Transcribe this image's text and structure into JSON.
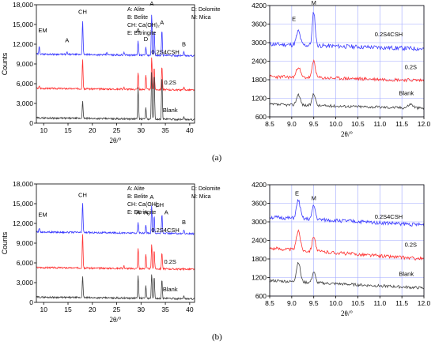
{
  "chart_data": [
    {
      "id": "a_left",
      "type": "line",
      "ylabel": "Counts",
      "xlabel": "2θ/°",
      "xlim": [
        8.5,
        41
      ],
      "ylim": [
        0,
        18000
      ],
      "yticks": [
        "0",
        "3,000",
        "6,000",
        "9,000",
        "12,000",
        "15,000",
        "18,000"
      ],
      "xticks": [
        "10",
        "15",
        "20",
        "25",
        "30",
        "35",
        "40"
      ],
      "grid": false,
      "legend_text": {
        "col1": [
          "A: Alite",
          "B: Belite",
          "CH: Ca(OH)₂",
          "E: Ettringite"
        ],
        "col2": [
          "D: Dolomite",
          "M: Mica"
        ]
      },
      "series": [
        {
          "name": "0.2S4CSH",
          "color": "#3a3aff",
          "base": 10500,
          "peaks": [
            [
              9.1,
              1200
            ],
            [
              18.0,
              5200
            ],
            [
              29.4,
              2200
            ],
            [
              31.0,
              1300
            ],
            [
              32.2,
              6300
            ],
            [
              32.7,
              3800
            ],
            [
              34.3,
              4000
            ],
            [
              38.8,
              700
            ],
            [
              14.8,
              300
            ],
            [
              23.0,
              400
            ],
            [
              26.5,
              500
            ]
          ]
        },
        {
          "name": "0.2S",
          "color": "#ff3030",
          "base": 5300,
          "peaks": [
            [
              9.1,
              300
            ],
            [
              18.0,
              4600
            ],
            [
              29.4,
              2600
            ],
            [
              31.0,
              2300
            ],
            [
              32.2,
              4900
            ],
            [
              32.7,
              3500
            ],
            [
              34.3,
              3700
            ],
            [
              38.8,
              400
            ],
            [
              26.5,
              300
            ]
          ]
        },
        {
          "name": "Blank",
          "color": "#404040",
          "base": 800,
          "peaks": [
            [
              18.0,
              2700
            ],
            [
              29.4,
              4900
            ],
            [
              31.0,
              1800
            ],
            [
              32.2,
              7300
            ],
            [
              32.7,
              7000
            ],
            [
              34.3,
              6800
            ],
            [
              38.8,
              500
            ]
          ]
        }
      ],
      "peak_labels": [
        {
          "text": "EM",
          "x": 9.8,
          "y": 13800
        },
        {
          "text": "A",
          "x": 14.8,
          "y": 12300
        },
        {
          "text": "CH",
          "x": 18.0,
          "y": 16600
        },
        {
          "text": "A",
          "x": 29.4,
          "y": 13800
        },
        {
          "text": "D",
          "x": 31.0,
          "y": 12500
        },
        {
          "text": "A",
          "x": 32.2,
          "y": 17900
        },
        {
          "text": "A",
          "x": 34.3,
          "y": 15000
        },
        {
          "text": "B",
          "x": 38.8,
          "y": 11700
        }
      ],
      "series_labels": [
        {
          "text": "0.2S4CSH",
          "x": 35.0,
          "y": 10500
        },
        {
          "text": "0.2S",
          "x": 36.0,
          "y": 5900
        },
        {
          "text": "Blank",
          "x": 36.0,
          "y": 1700
        }
      ]
    },
    {
      "id": "a_right",
      "type": "line",
      "xlabel": "2θ/°",
      "xlim": [
        8.5,
        12.0
      ],
      "ylim": [
        600,
        4200
      ],
      "yticks": [
        "600",
        "1200",
        "1800",
        "2400",
        "3000",
        "3600",
        "4200"
      ],
      "xticks": [
        "8.5",
        "9.0",
        "9.5",
        "10.0",
        "10.5",
        "11.0",
        "11.5",
        "12.0"
      ],
      "grid": true,
      "series": [
        {
          "name": "0.2S4CSH",
          "color": "#3a3aff",
          "base": 2950,
          "end": 2800,
          "noise": 70,
          "seed": 11,
          "peaks": [
            [
              9.15,
              450,
              0.06
            ],
            [
              9.5,
              1100,
              0.045
            ]
          ]
        },
        {
          "name": "0.2S",
          "color": "#ff3030",
          "base": 1900,
          "end": 1780,
          "noise": 55,
          "seed": 23,
          "peaks": [
            [
              9.15,
              350,
              0.06
            ],
            [
              9.5,
              550,
              0.05
            ]
          ]
        },
        {
          "name": "Blank",
          "color": "#404040",
          "base": 1000,
          "end": 880,
          "noise": 45,
          "seed": 37,
          "peaks": [
            [
              9.15,
              350,
              0.06
            ],
            [
              9.5,
              400,
              0.05
            ],
            [
              11.7,
              120,
              0.08
            ]
          ]
        }
      ],
      "peak_labels": [
        {
          "text": "E",
          "x": 9.05,
          "y": 3700
        },
        {
          "text": "M",
          "x": 9.5,
          "y": 4230
        }
      ],
      "series_labels": [
        {
          "text": "0.2S4CSH",
          "x": 11.2,
          "y": 3200
        },
        {
          "text": "0.2S",
          "x": 11.7,
          "y": 2150
        },
        {
          "text": "Blank",
          "x": 11.6,
          "y": 1300
        }
      ]
    },
    {
      "id": "b_left",
      "type": "line",
      "ylabel": "Counts",
      "xlabel": "2θ/°",
      "xlim": [
        8.5,
        41
      ],
      "ylim": [
        0,
        18000
      ],
      "yticks": [
        "0",
        "3,000",
        "6,000",
        "9,000",
        "12,000",
        "15,000",
        "18,000"
      ],
      "xticks": [
        "10",
        "15",
        "20",
        "25",
        "30",
        "35",
        "40"
      ],
      "grid": false,
      "legend_text": {
        "col1": [
          "A: Alite",
          "B: Belite",
          "CH: Ca(OH)₂",
          "E: Ettringite"
        ],
        "col2": [
          "D: Dolomite",
          "M: Mica"
        ]
      },
      "series": [
        {
          "name": "0.2S4CSH",
          "color": "#3a3aff",
          "base": 10700,
          "peaks": [
            [
              9.1,
              700
            ],
            [
              18.0,
              4600
            ],
            [
              29.4,
              1600
            ],
            [
              31.0,
              1200
            ],
            [
              32.2,
              4300
            ],
            [
              32.7,
              2700
            ],
            [
              34.3,
              3000
            ],
            [
              38.8,
              600
            ]
          ]
        },
        {
          "name": "0.2S",
          "color": "#ff3030",
          "base": 5300,
          "peaks": [
            [
              18.0,
              5300
            ],
            [
              29.4,
              3200
            ],
            [
              31.0,
              2300
            ],
            [
              32.2,
              3700
            ],
            [
              32.7,
              2900
            ],
            [
              34.3,
              2600
            ],
            [
              26.5,
              400
            ]
          ]
        },
        {
          "name": "Blank",
          "color": "#404040",
          "base": 800,
          "peaks": [
            [
              18.0,
              3300
            ],
            [
              29.4,
              3500
            ],
            [
              31.0,
              2000
            ],
            [
              32.2,
              3700
            ],
            [
              32.7,
              3300
            ],
            [
              34.3,
              3000
            ],
            [
              38.8,
              500
            ]
          ]
        }
      ],
      "peak_labels": [
        {
          "text": "EM",
          "x": 9.8,
          "y": 13000
        },
        {
          "text": "CH",
          "x": 18.0,
          "y": 16000
        },
        {
          "text": "A",
          "x": 29.4,
          "y": 13400
        },
        {
          "text": "A",
          "x": 31.0,
          "y": 13400
        },
        {
          "text": "A",
          "x": 32.2,
          "y": 15700
        },
        {
          "text": "CH",
          "x": 33.8,
          "y": 14500
        },
        {
          "text": "A",
          "x": 35.2,
          "y": 13400
        },
        {
          "text": "B",
          "x": 38.8,
          "y": 11900
        }
      ],
      "series_labels": [
        {
          "text": "0.2S4CSH",
          "x": 35.0,
          "y": 10700
        },
        {
          "text": "0.2S",
          "x": 36.0,
          "y": 5900
        },
        {
          "text": "Blank",
          "x": 36.0,
          "y": 1700
        }
      ]
    },
    {
      "id": "b_right",
      "type": "line",
      "xlabel": "2θ/°",
      "xlim": [
        8.5,
        12.0
      ],
      "ylim": [
        600,
        4200
      ],
      "yticks": [
        "600",
        "1200",
        "1800",
        "2400",
        "3000",
        "3600",
        "4200"
      ],
      "xticks": [
        "8.5",
        "9.0",
        "9.5",
        "10.0",
        "10.5",
        "11.0",
        "11.5",
        "12.0"
      ],
      "grid": true,
      "series": [
        {
          "name": "0.2S4CSH",
          "color": "#3a3aff",
          "base": 3150,
          "end": 2900,
          "noise": 60,
          "seed": 51,
          "peaks": [
            [
              9.15,
              600,
              0.06
            ],
            [
              9.5,
              450,
              0.05
            ]
          ]
        },
        {
          "name": "0.2S",
          "color": "#ff3030",
          "base": 2150,
          "end": 1800,
          "noise": 55,
          "seed": 63,
          "peaks": [
            [
              9.15,
              650,
              0.06
            ],
            [
              9.5,
              500,
              0.05
            ]
          ]
        },
        {
          "name": "Blank",
          "color": "#404040",
          "base": 1100,
          "end": 860,
          "noise": 45,
          "seed": 77,
          "peaks": [
            [
              9.15,
              650,
              0.06
            ],
            [
              9.5,
              350,
              0.05
            ]
          ]
        }
      ],
      "peak_labels": [
        {
          "text": "E",
          "x": 9.12,
          "y": 3850
        },
        {
          "text": "M",
          "x": 9.5,
          "y": 3700
        }
      ],
      "series_labels": [
        {
          "text": "0.2S4CSH",
          "x": 11.2,
          "y": 3100
        },
        {
          "text": "0.2S",
          "x": 11.7,
          "y": 2200
        },
        {
          "text": "Blank",
          "x": 11.6,
          "y": 1250
        }
      ]
    }
  ],
  "captions": {
    "a": "(a)",
    "b": "(b)"
  }
}
